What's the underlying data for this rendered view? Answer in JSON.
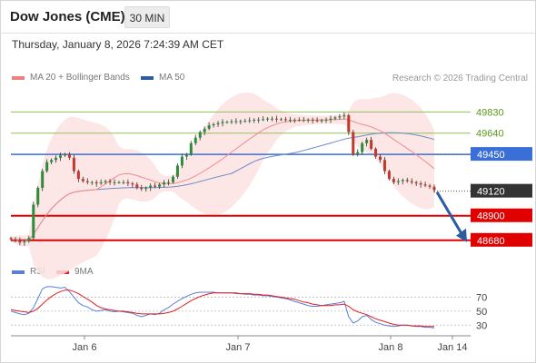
{
  "header": {
    "title": "Dow Jones (CME)",
    "interval_label": "30 MIN",
    "datetime": "Thursday, January 8, 2026 7:24:39 AM CET"
  },
  "legend": {
    "ma20": {
      "label": "MA 20 + Bollinger Bands",
      "color": "#f08080"
    },
    "ma50": {
      "label": "MA 50",
      "color": "#2e5c9e"
    },
    "credit": "Research © 2026 Trading Central"
  },
  "rsi_legend": {
    "rsi": {
      "label": "RSI",
      "color": "#5b7fd6"
    },
    "ma9": {
      "label": "9MA",
      "color": "#e02020"
    }
  },
  "colors": {
    "up_candle": "#2e8b3a",
    "down_candle": "#c0392b",
    "resistance": "#8fc25a",
    "pivot": "#3a6fd8",
    "support": "#e00000",
    "current": "#333333",
    "arrow": "#2e5c9e",
    "band_fill": "#fde2e2"
  },
  "chart_data": [
    {
      "type": "candlestick",
      "title": "Dow Jones (CME)",
      "interval": "30 MIN",
      "x_ticks": [
        "Jan 6",
        "Jan 7",
        "Jan 8",
        "Jan 14"
      ],
      "price_levels": [
        {
          "value": 49830,
          "label": "49830",
          "role": "resistance"
        },
        {
          "value": 49640,
          "label": "49640",
          "role": "resistance"
        },
        {
          "value": 49450,
          "label": "49450",
          "role": "pivot"
        },
        {
          "value": 49120,
          "label": "49120",
          "role": "current"
        },
        {
          "value": 48900,
          "label": "48900",
          "role": "support"
        },
        {
          "value": 48680,
          "label": "48680",
          "role": "support"
        }
      ],
      "ylim": [
        48540,
        50020
      ],
      "close_series": [
        48690,
        48680,
        48660,
        48670,
        48700,
        49000,
        49150,
        49300,
        49380,
        49400,
        49420,
        49440,
        49450,
        49420,
        49300,
        49230,
        49210,
        49200,
        49200,
        49190,
        49200,
        49210,
        49200,
        49200,
        49200,
        49200,
        49190,
        49180,
        49150,
        49140,
        49150,
        49170,
        49160,
        49180,
        49200,
        49200,
        49250,
        49350,
        49430,
        49450,
        49550,
        49600,
        49650,
        49680,
        49710,
        49720,
        49730,
        49740,
        49740,
        49745,
        49748,
        49748,
        49750,
        49755,
        49760,
        49762,
        49765,
        49770,
        49770,
        49765,
        49765,
        49760,
        49760,
        49760,
        49758,
        49758,
        49760,
        49755,
        49750,
        49755,
        49760,
        49770,
        49780,
        49790,
        49800,
        49650,
        49450,
        49470,
        49550,
        49580,
        49500,
        49430,
        49400,
        49300,
        49230,
        49200,
        49210,
        49220,
        49210,
        49200,
        49190,
        49180,
        49170,
        49160,
        49130
      ],
      "forecast": {
        "from": 49120,
        "to": 48680
      }
    },
    {
      "type": "line",
      "title": "RSI",
      "series": [
        {
          "name": "RSI"
        },
        {
          "name": "9MA"
        }
      ],
      "y_ticks": [
        70,
        50,
        30
      ],
      "ylim": [
        20,
        90
      ],
      "rsi": [
        50,
        48,
        46,
        45,
        47,
        55,
        68,
        82,
        85,
        85,
        84,
        83,
        84,
        78,
        70,
        62,
        58,
        56,
        52,
        50,
        51,
        52,
        50,
        49,
        50,
        49,
        48,
        47,
        44,
        42,
        44,
        46,
        45,
        47,
        52,
        55,
        60,
        64,
        68,
        71,
        74,
        76,
        77,
        77,
        77,
        77,
        76,
        76,
        76,
        76,
        75,
        75,
        74,
        74,
        73,
        73,
        72,
        72,
        71,
        70,
        69,
        68,
        66,
        64,
        62,
        60,
        58,
        57,
        57,
        58,
        59,
        60,
        61,
        62,
        64,
        42,
        33,
        36,
        42,
        44,
        38,
        34,
        32,
        30,
        29,
        28,
        29,
        30,
        30,
        29,
        28,
        28,
        27,
        27,
        26
      ],
      "ma9": [
        52,
        51,
        50,
        49,
        48,
        50,
        54,
        60,
        66,
        71,
        75,
        78,
        80,
        80,
        78,
        75,
        71,
        67,
        63,
        58,
        55,
        53,
        52,
        51,
        50,
        50,
        49,
        48,
        47,
        46,
        46,
        46,
        46,
        46,
        47,
        48,
        50,
        53,
        57,
        61,
        65,
        68,
        71,
        73,
        75,
        76,
        76,
        76,
        76,
        76,
        76,
        75,
        75,
        75,
        74,
        74,
        73,
        73,
        72,
        71,
        70,
        69,
        68,
        67,
        65,
        63,
        62,
        60,
        59,
        58,
        58,
        58,
        59,
        59,
        60,
        57,
        52,
        49,
        47,
        45,
        42,
        39,
        37,
        35,
        33,
        31,
        30,
        30,
        30,
        29,
        29,
        29,
        28,
        28,
        28
      ]
    }
  ]
}
